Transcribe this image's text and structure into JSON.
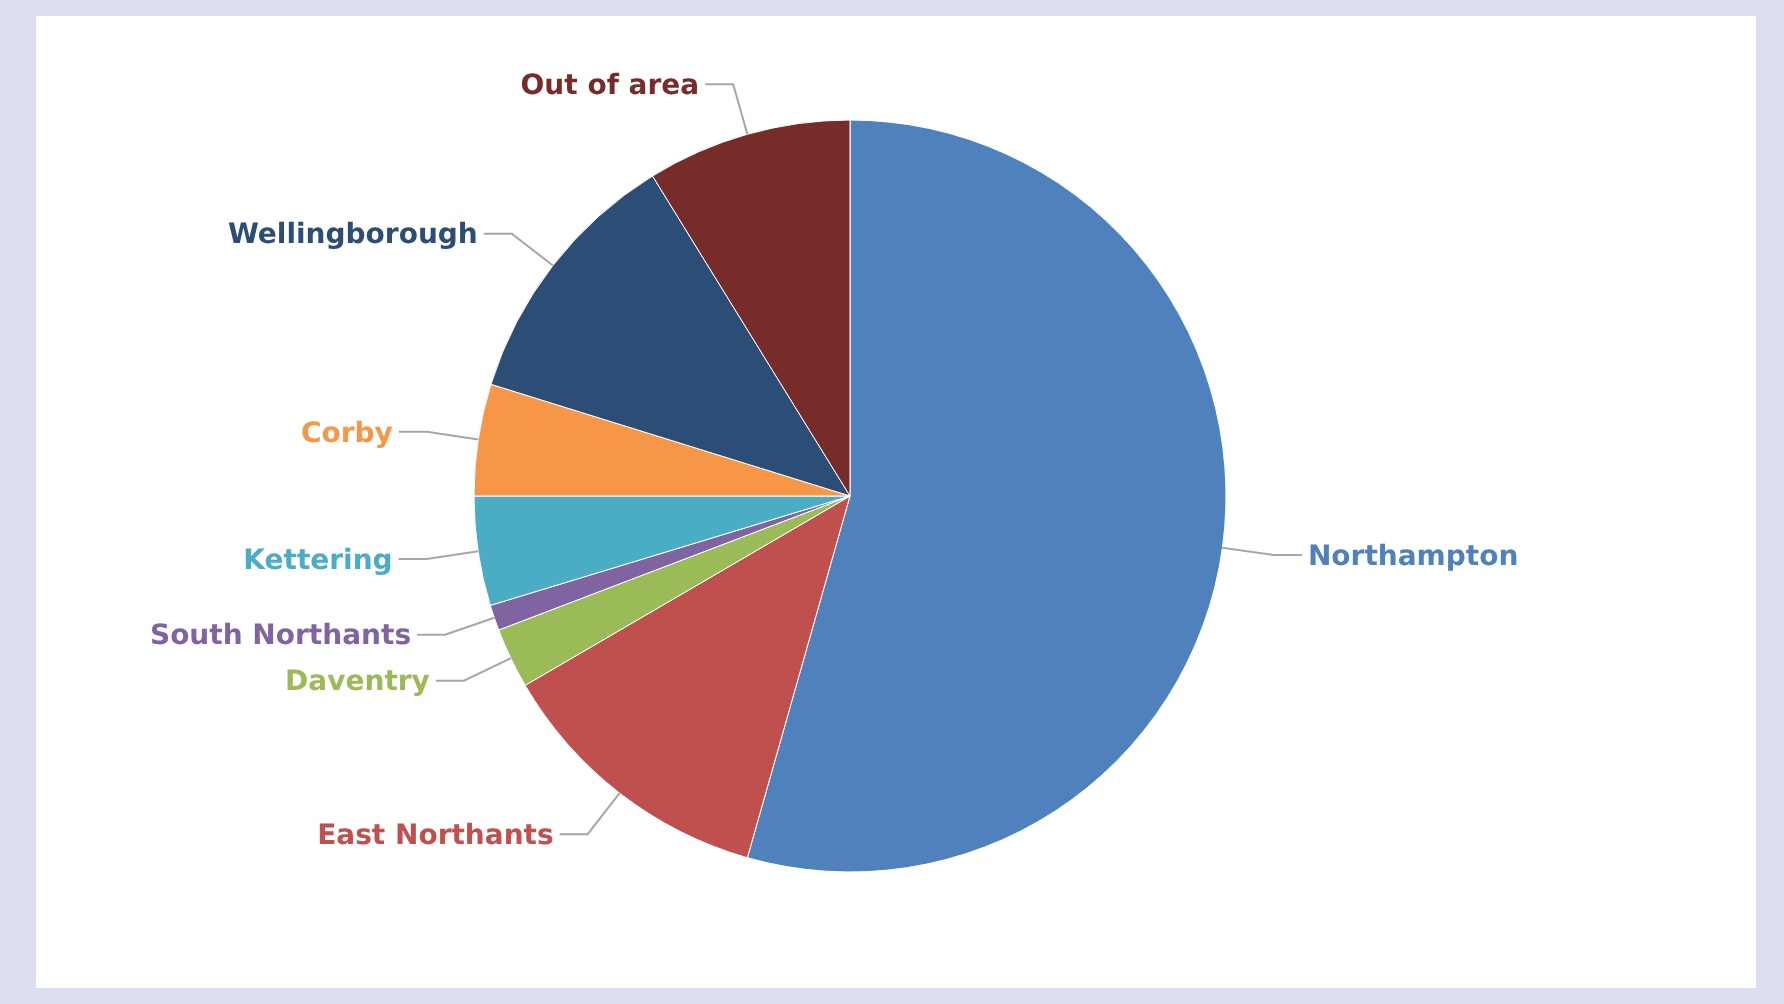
{
  "chart_data": {
    "type": "pie",
    "categories": [
      "Northampton",
      "East Northants",
      "Daventry",
      "South Northants",
      "Kettering",
      "Corby",
      "Wellingborough",
      "Out of area"
    ],
    "values": [
      54.4,
      12.2,
      2.6,
      1.1,
      4.7,
      4.8,
      11.4,
      8.8
    ],
    "colors": [
      "#4f81bd",
      "#c0504d",
      "#9bbb59",
      "#8064a2",
      "#4bacc6",
      "#f79646",
      "#2c4d75",
      "#772c2a"
    ]
  }
}
